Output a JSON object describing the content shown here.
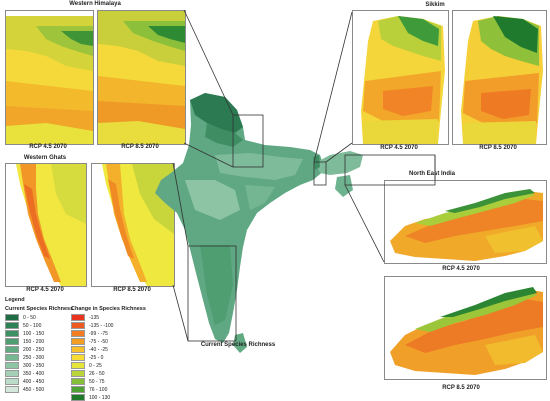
{
  "insets": {
    "western_himalaya": {
      "title": "Western Himalaya",
      "left_label": "RCP 4.5 2070",
      "right_label": "RCP 8.5 2070"
    },
    "western_ghats": {
      "title": "Western Ghats",
      "left_label": "RCP 4.5 2070",
      "right_label": "RCP 8.5 2070"
    },
    "sikkim": {
      "title": "Sikkim",
      "left_label": "RCP 4.5 2070",
      "right_label": "RCP 8.5 2070"
    },
    "north_east_india": {
      "title": "North East India",
      "top_label": "RCP 4.5 2070",
      "bottom_label": "RCP 8.5 2070"
    }
  },
  "main_map": {
    "label": "Current Species Richness"
  },
  "legend": {
    "title": "Legend",
    "current_header": "Current Species Richness",
    "change_header": "Change in Species Richness",
    "current_items": [
      {
        "label": "0 - 50",
        "color": "#1e6e45"
      },
      {
        "label": "50 - 100",
        "color": "#2e8055"
      },
      {
        "label": "100 - 150",
        "color": "#3d9163"
      },
      {
        "label": "150 - 200",
        "color": "#4f9e72"
      },
      {
        "label": "200 - 250",
        "color": "#62ab82"
      },
      {
        "label": "250 - 300",
        "color": "#77b893"
      },
      {
        "label": "300 - 350",
        "color": "#8cc4a4"
      },
      {
        "label": "350 - 400",
        "color": "#a3d0b6"
      },
      {
        "label": "400 - 450",
        "color": "#bbdcc8"
      },
      {
        "label": "450 - 500",
        "color": "#d3e8db"
      }
    ],
    "change_items": [
      {
        "label": "-135",
        "color": "#e8331f"
      },
      {
        "label": "-135 - -100",
        "color": "#ee5a1f"
      },
      {
        "label": "-99 - -75",
        "color": "#f27d22"
      },
      {
        "label": "-75 - -50",
        "color": "#f59e26"
      },
      {
        "label": "-40 - -25",
        "color": "#f8c02b"
      },
      {
        "label": "-25 - 0",
        "color": "#f7dd33"
      },
      {
        "label": "0 - 25",
        "color": "#e6e63a"
      },
      {
        "label": "26 - 50",
        "color": "#b9d53a"
      },
      {
        "label": "50 - 75",
        "color": "#86bf38"
      },
      {
        "label": "76 - 100",
        "color": "#4fa234"
      },
      {
        "label": "100 - 130",
        "color": "#1f7a2c"
      }
    ]
  }
}
